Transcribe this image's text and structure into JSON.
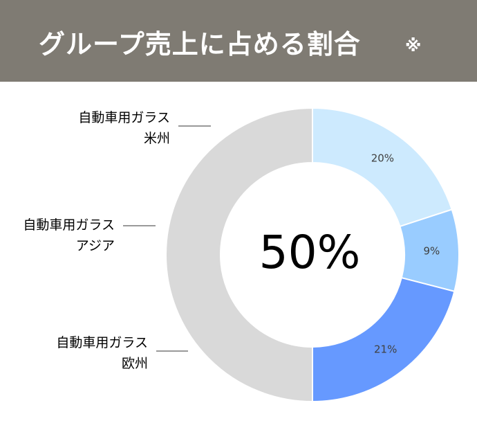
{
  "header": {
    "title": "グループ売上に占める割合",
    "mark": "※",
    "background": "#7f7b73"
  },
  "chart_data": {
    "type": "pie",
    "donut": true,
    "center_label": "50%",
    "start_angle_deg": 0,
    "direction": "counterclockwise",
    "segments": [
      {
        "name": "other",
        "value": 50,
        "label": "",
        "color": "#d9d9d9",
        "category_lines": []
      },
      {
        "name": "europe",
        "value": 21,
        "label": "21%",
        "color": "#6699ff",
        "category_lines": [
          "自動車用ガラス",
          "欧州"
        ]
      },
      {
        "name": "asia",
        "value": 9,
        "label": "9%",
        "color": "#99ccff",
        "category_lines": [
          "自動車用ガラス",
          "アジア"
        ]
      },
      {
        "name": "americas",
        "value": 20,
        "label": "20%",
        "color": "#cdeafe",
        "category_lines": [
          "自動車用ガラス",
          "米州"
        ]
      }
    ]
  }
}
